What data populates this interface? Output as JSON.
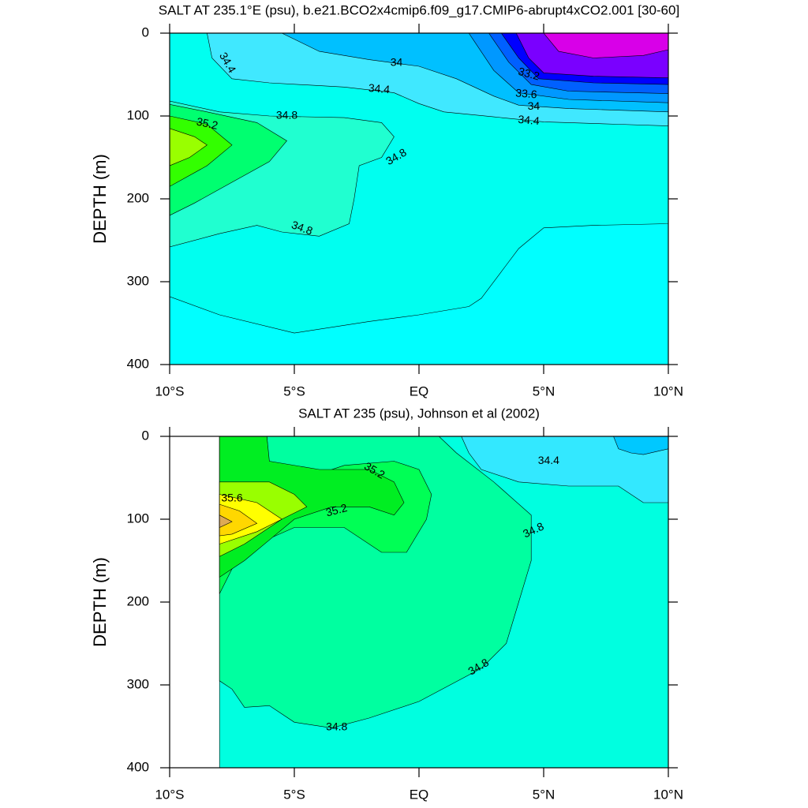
{
  "chart_data": [
    {
      "type": "contour",
      "title": "SALT AT 235.1°E (psu), b.e21.BCO2x4cmip6.f09_g17.CMIP6-abrupt4xCO2.001 [30-60]",
      "ylabel": "DEPTH (m)",
      "xlim": [
        -10,
        10
      ],
      "ylim": [
        0,
        400
      ],
      "y_inverted": true,
      "xticks": [
        {
          "value": -10,
          "label": "10°S"
        },
        {
          "value": -5,
          "label": "5°S"
        },
        {
          "value": 0,
          "label": "EQ"
        },
        {
          "value": 5,
          "label": "5°N"
        },
        {
          "value": 10,
          "label": "10°N"
        }
      ],
      "yticks": [
        0,
        100,
        200,
        300,
        400
      ],
      "levels": [
        {
          "value": 34.4,
          "color": "#00ffff"
        },
        {
          "value": 34.6,
          "color": "#00fff0"
        },
        {
          "value": 34.8,
          "color": "#20ffd0"
        },
        {
          "value": 35.0,
          "color": "#00ff70"
        },
        {
          "value": 35.2,
          "color": "#33ff00"
        },
        {
          "value": 35.4,
          "color": "#99ff00"
        },
        {
          "value": 34.2,
          "color": "#40e8ff"
        },
        {
          "value": 34.0,
          "color": "#00c0ff"
        },
        {
          "value": 33.8,
          "color": "#0098ff"
        },
        {
          "value": 33.6,
          "color": "#0060ff"
        },
        {
          "value": 33.4,
          "color": "#0000ff"
        },
        {
          "value": 33.2,
          "color": "#7a00ff"
        },
        {
          "value": 33.0,
          "color": "#d800e8"
        }
      ],
      "contour_labels": [
        34.4,
        34,
        34.4,
        34.8,
        35.2,
        34.8,
        34.8,
        33.2,
        33.6,
        34,
        34.4
      ]
    },
    {
      "type": "contour",
      "title": "SALT AT 235 (psu), Johnson et al (2002)",
      "ylabel": "DEPTH (m)",
      "xlim": [
        -10,
        10
      ],
      "ylim": [
        0,
        400
      ],
      "y_inverted": true,
      "xticks": [
        {
          "value": -10,
          "label": "10°S"
        },
        {
          "value": -5,
          "label": "5°S"
        },
        {
          "value": 0,
          "label": "EQ"
        },
        {
          "value": 5,
          "label": "5°N"
        },
        {
          "value": 10,
          "label": "10°N"
        }
      ],
      "yticks": [
        0,
        100,
        200,
        300,
        400
      ],
      "levels": [
        {
          "value": 34.6,
          "color": "#00ffe0"
        },
        {
          "value": 34.8,
          "color": "#00ffa0"
        },
        {
          "value": 35.0,
          "color": "#00ff55"
        },
        {
          "value": 35.2,
          "color": "#00ee22"
        },
        {
          "value": 35.4,
          "color": "#99ff00"
        },
        {
          "value": 35.6,
          "color": "#ffff00"
        },
        {
          "value": 35.8,
          "color": "#ffd700"
        },
        {
          "value": 36.0,
          "color": "#ddaa55"
        },
        {
          "value": 34.4,
          "color": "#33e8ff"
        },
        {
          "value": 34.2,
          "color": "#00c8ff"
        }
      ],
      "contour_labels": [
        35.2,
        34.4,
        35.6,
        35.2,
        34.8,
        34.8,
        34.8
      ]
    }
  ]
}
